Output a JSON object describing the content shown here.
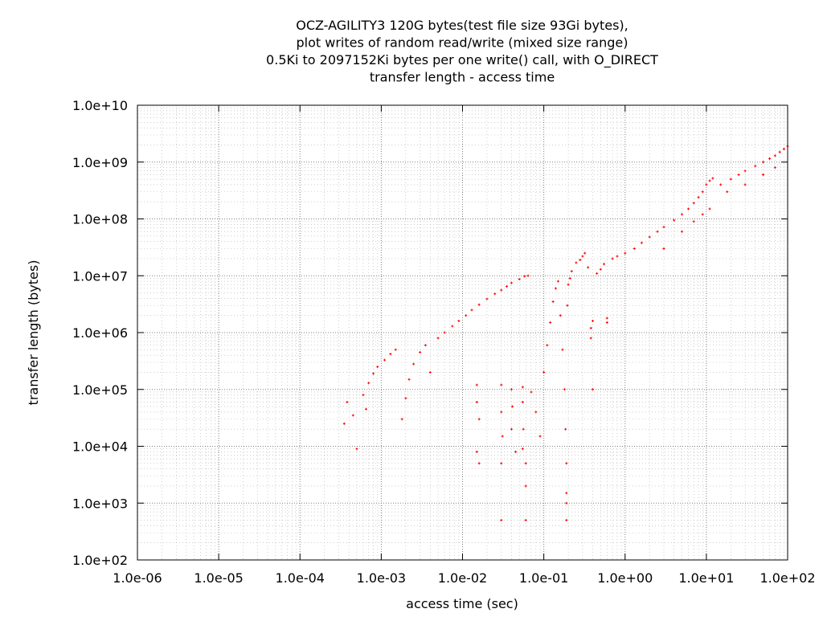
{
  "chart_data": {
    "type": "scatter",
    "title": [
      "OCZ-AGILITY3 120G bytes(test file size 93Gi bytes),",
      "plot writes of random read/write (mixed size range)",
      "0.5Ki to 2097152Ki bytes per one write() call, with O_DIRECT",
      "transfer length - access time"
    ],
    "xlabel": "access time (sec)",
    "ylabel": "transfer length (bytes)",
    "xscale": "log",
    "yscale": "log",
    "xlim": [
      1e-06,
      100
    ],
    "ylim": [
      100,
      10000000000
    ],
    "x_ticks": [
      {
        "value": 1e-06,
        "label": "1.0e-06"
      },
      {
        "value": 1e-05,
        "label": "1.0e-05"
      },
      {
        "value": 0.0001,
        "label": "1.0e-04"
      },
      {
        "value": 0.001,
        "label": "1.0e-03"
      },
      {
        "value": 0.01,
        "label": "1.0e-02"
      },
      {
        "value": 0.1,
        "label": "1.0e-01"
      },
      {
        "value": 1,
        "label": "1.0e+00"
      },
      {
        "value": 10,
        "label": "1.0e+01"
      },
      {
        "value": 100,
        "label": "1.0e+02"
      }
    ],
    "y_ticks": [
      {
        "value": 100,
        "label": "1.0e+02"
      },
      {
        "value": 1000,
        "label": "1.0e+03"
      },
      {
        "value": 10000,
        "label": "1.0e+04"
      },
      {
        "value": 100000,
        "label": "1.0e+05"
      },
      {
        "value": 1000000,
        "label": "1.0e+06"
      },
      {
        "value": 10000000,
        "label": "1.0e+07"
      },
      {
        "value": 100000000,
        "label": "1.0e+08"
      },
      {
        "value": 1000000000,
        "label": "1.0e+09"
      },
      {
        "value": 10000000000,
        "label": "1.0e+10"
      }
    ],
    "grid": true,
    "minor_grid": true,
    "legend": "none",
    "marker_color": "#ff0000",
    "series": [
      {
        "values": [
          [
            0.00035,
            25000
          ],
          [
            0.00038,
            60000
          ],
          [
            0.00045,
            35000
          ],
          [
            0.0005,
            9000
          ],
          [
            0.0006,
            80000
          ],
          [
            0.0007,
            130000
          ],
          [
            0.00065,
            45000
          ],
          [
            0.0008,
            190000
          ],
          [
            0.0009,
            250000
          ],
          [
            0.0011,
            330000
          ],
          [
            0.0013,
            420000
          ],
          [
            0.0015,
            500000
          ],
          [
            0.0018,
            30000
          ],
          [
            0.002,
            70000
          ],
          [
            0.0022,
            150000
          ],
          [
            0.0025,
            280000
          ],
          [
            0.003,
            450000
          ],
          [
            0.0035,
            600000
          ],
          [
            0.004,
            200000
          ],
          [
            0.005,
            800000
          ],
          [
            0.006,
            1000000
          ],
          [
            0.0075,
            1300000
          ],
          [
            0.009,
            1600000
          ],
          [
            0.011,
            2000000
          ],
          [
            0.013,
            2500000
          ],
          [
            0.016,
            3100000
          ],
          [
            0.02,
            3900000
          ],
          [
            0.025,
            4800000
          ],
          [
            0.03,
            5600000
          ],
          [
            0.035,
            6500000
          ],
          [
            0.04,
            7500000
          ],
          [
            0.05,
            8700000
          ],
          [
            0.058,
            9800000
          ],
          [
            0.064,
            10000000
          ],
          [
            0.015,
            120000
          ],
          [
            0.015,
            60000
          ],
          [
            0.016,
            30000
          ],
          [
            0.015,
            8000
          ],
          [
            0.016,
            5000
          ],
          [
            0.03,
            120000
          ],
          [
            0.03,
            40000
          ],
          [
            0.031,
            15000
          ],
          [
            0.03,
            5000
          ],
          [
            0.03,
            500
          ],
          [
            0.04,
            100000
          ],
          [
            0.041,
            50000
          ],
          [
            0.04,
            20000
          ],
          [
            0.045,
            8000
          ],
          [
            0.055,
            110000
          ],
          [
            0.055,
            60000
          ],
          [
            0.056,
            20000
          ],
          [
            0.055,
            9000
          ],
          [
            0.06,
            5000
          ],
          [
            0.06,
            2000
          ],
          [
            0.06,
            500
          ],
          [
            0.07,
            90000
          ],
          [
            0.08,
            40000
          ],
          [
            0.09,
            15000
          ],
          [
            0.1,
            200000
          ],
          [
            0.11,
            600000
          ],
          [
            0.12,
            1500000
          ],
          [
            0.13,
            3500000
          ],
          [
            0.14,
            6000000
          ],
          [
            0.15,
            8000000
          ],
          [
            0.16,
            2000000
          ],
          [
            0.17,
            500000
          ],
          [
            0.18,
            100000
          ],
          [
            0.185,
            20000
          ],
          [
            0.19,
            5000
          ],
          [
            0.19,
            1500
          ],
          [
            0.19,
            1000
          ],
          [
            0.19,
            500
          ],
          [
            0.195,
            3000000
          ],
          [
            0.2,
            7000000
          ],
          [
            0.21,
            9000000
          ],
          [
            0.22,
            12000000
          ],
          [
            0.25,
            17000000
          ],
          [
            0.28,
            19000000
          ],
          [
            0.3,
            22000000
          ],
          [
            0.32,
            25000000
          ],
          [
            0.35,
            14000000
          ],
          [
            0.38,
            1200000
          ],
          [
            0.38,
            800000
          ],
          [
            0.4,
            1600000
          ],
          [
            0.4,
            100000
          ],
          [
            0.45,
            11000000
          ],
          [
            0.5,
            13000000
          ],
          [
            0.55,
            16000000
          ],
          [
            0.6,
            1500000
          ],
          [
            0.6,
            1800000
          ],
          [
            0.7,
            20000000
          ],
          [
            0.8,
            22000000
          ],
          [
            1.0,
            25000000
          ],
          [
            1.3,
            30000000
          ],
          [
            1.6,
            38000000
          ],
          [
            2.0,
            48000000
          ],
          [
            2.5,
            60000000
          ],
          [
            3.0,
            72000000
          ],
          [
            4.0,
            95000000
          ],
          [
            5.0,
            120000000
          ],
          [
            6.0,
            150000000
          ],
          [
            7.0,
            190000000
          ],
          [
            8.0,
            240000000
          ],
          [
            9.0,
            300000000
          ],
          [
            10.0,
            400000000
          ],
          [
            11.0,
            470000000
          ],
          [
            12.0,
            520000000
          ],
          [
            3.0,
            30000000
          ],
          [
            5.0,
            60000000
          ],
          [
            7.0,
            90000000
          ],
          [
            9.0,
            120000000
          ],
          [
            11.0,
            150000000
          ],
          [
            15.0,
            400000000
          ],
          [
            20.0,
            500000000
          ],
          [
            25.0,
            600000000
          ],
          [
            30.0,
            700000000
          ],
          [
            40.0,
            850000000
          ],
          [
            50.0,
            1000000000
          ],
          [
            60.0,
            1150000000
          ],
          [
            70.0,
            1300000000
          ],
          [
            80.0,
            1500000000
          ],
          [
            90.0,
            1700000000
          ],
          [
            100.0,
            1900000000
          ],
          [
            18.0,
            300000000
          ],
          [
            30.0,
            400000000
          ],
          [
            50.0,
            600000000
          ],
          [
            70.0,
            800000000
          ]
        ]
      }
    ]
  }
}
